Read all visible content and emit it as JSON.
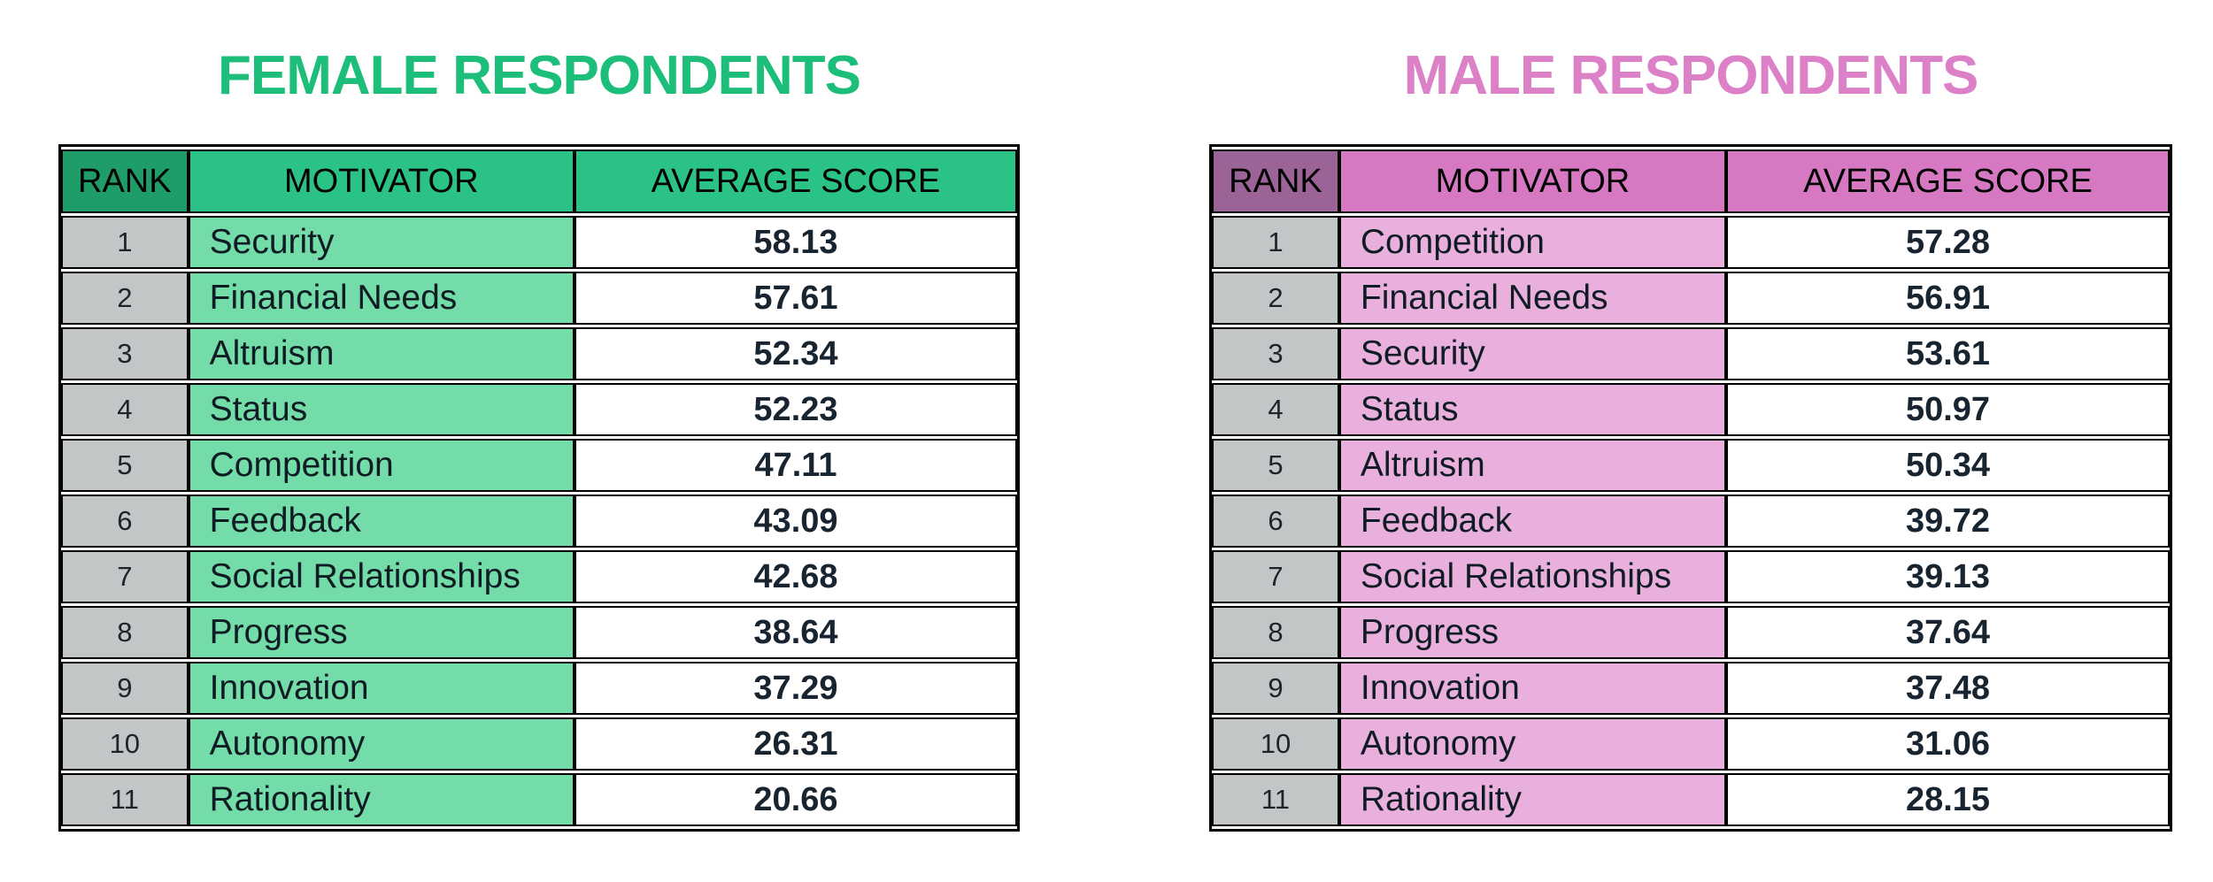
{
  "chart_data": [
    {
      "type": "table",
      "group": "female",
      "title": "FEMALE RESPONDENTS",
      "columns": [
        "RANK",
        "MOTIVATOR",
        "AVERAGE SCORE"
      ],
      "rows": [
        {
          "rank": "1",
          "motivator": "Security",
          "score": "58.13"
        },
        {
          "rank": "2",
          "motivator": "Financial Needs",
          "score": "57.61"
        },
        {
          "rank": "3",
          "motivator": "Altruism",
          "score": "52.34"
        },
        {
          "rank": "4",
          "motivator": "Status",
          "score": "52.23"
        },
        {
          "rank": "5",
          "motivator": "Competition",
          "score": "47.11"
        },
        {
          "rank": "6",
          "motivator": "Feedback",
          "score": "43.09"
        },
        {
          "rank": "7",
          "motivator": "Social Relationships",
          "score": "42.68"
        },
        {
          "rank": "8",
          "motivator": "Progress",
          "score": "38.64"
        },
        {
          "rank": "9",
          "motivator": "Innovation",
          "score": "37.29"
        },
        {
          "rank": "10",
          "motivator": "Autonomy",
          "score": "26.31"
        },
        {
          "rank": "11",
          "motivator": "Rationality",
          "score": "20.66"
        }
      ]
    },
    {
      "type": "table",
      "group": "male",
      "title": "MALE RESPONDENTS",
      "columns": [
        "RANK",
        "MOTIVATOR",
        "AVERAGE SCORE"
      ],
      "rows": [
        {
          "rank": "1",
          "motivator": "Competition",
          "score": "57.28"
        },
        {
          "rank": "2",
          "motivator": "Financial Needs",
          "score": "56.91"
        },
        {
          "rank": "3",
          "motivator": "Security",
          "score": "53.61"
        },
        {
          "rank": "4",
          "motivator": "Status",
          "score": "50.97"
        },
        {
          "rank": "5",
          "motivator": "Altruism",
          "score": "50.34"
        },
        {
          "rank": "6",
          "motivator": "Feedback",
          "score": "39.72"
        },
        {
          "rank": "7",
          "motivator": "Social Relationships",
          "score": "39.13"
        },
        {
          "rank": "8",
          "motivator": "Progress",
          "score": "37.64"
        },
        {
          "rank": "9",
          "motivator": "Innovation",
          "score": "37.48"
        },
        {
          "rank": "10",
          "motivator": "Autonomy",
          "score": "31.06"
        },
        {
          "rank": "11",
          "motivator": "Rationality",
          "score": "28.15"
        }
      ]
    }
  ],
  "theme": {
    "female": {
      "title_color": "#1DBE79",
      "header_bg": "#2BC286",
      "rank_header_bg": "#1F9D68",
      "motivator_cell_bg": "#73DCA8"
    },
    "male": {
      "title_color": "#DC81C7",
      "header_bg": "#D678C2",
      "rank_header_bg": "#9C6496",
      "motivator_cell_bg": "#EAB0DD"
    },
    "rank_cell_bg": "#C2C6C6",
    "border_color": "#000000",
    "score_text_color": "#18242F",
    "background": "#FFFFFF"
  }
}
